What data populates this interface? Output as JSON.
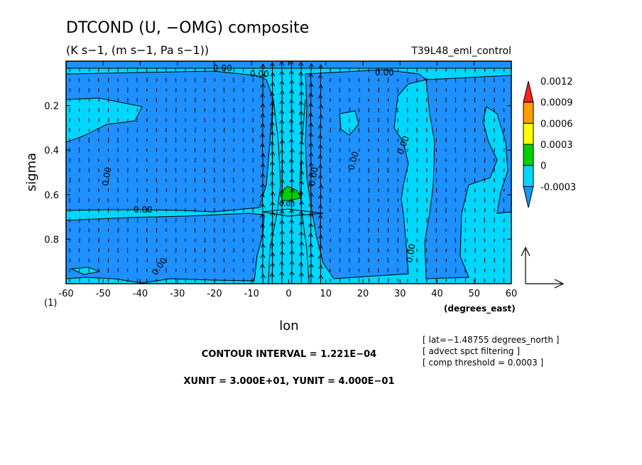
{
  "chart_data": {
    "type": "heatmap",
    "title": "DTCOND (U, −OMG) composite",
    "subtitle": "(K s−1, (m s−1, Pa s−1))",
    "run_label": "T39L48_eml_control",
    "xlabel": "lon",
    "xunits": "(degrees_east)",
    "ylabel": "sigma",
    "x_ticks": [
      -60,
      -50,
      -40,
      -30,
      -20,
      -10,
      0,
      10,
      20,
      30,
      40,
      50,
      60
    ],
    "x_tick_labels": [
      "-60",
      "-50",
      "-40",
      "-30",
      "-20",
      "-10",
      "0",
      "10",
      "20",
      "30",
      "40",
      "50",
      "60"
    ],
    "y_ticks": [
      0.2,
      0.4,
      0.6,
      0.8
    ],
    "y_tick_labels": [
      "0.2",
      "0.4",
      "0.6",
      "0.8"
    ],
    "xlim": [
      -60,
      60
    ],
    "ylim": [
      1.0,
      0.0
    ],
    "page_marker": "(1)",
    "colorbar": {
      "levels": [
        -0.0003,
        0,
        0.0003,
        0.0006,
        0.0009,
        0.0012
      ],
      "labels": [
        "-0.0003",
        "0",
        "0.0003",
        "0.0006",
        "0.0009",
        "0.0012"
      ],
      "colors": [
        "#1e90ff",
        "#00d7ff",
        "#00d000",
        "#ffff00",
        "#ffa000",
        "#ff2020"
      ]
    },
    "contour_labels": [
      "0.00",
      "0.00",
      "0.00",
      "0.00",
      "0.00",
      "0.00",
      "0.00",
      "0.00",
      "0.00",
      "0.00",
      "0.00"
    ],
    "regions": [
      {
        "value": "0 to 0.0003",
        "color": "#00d7ff",
        "x_range": [
          -60,
          60
        ],
        "y_range": [
          0.0,
          1.0
        ]
      },
      {
        "value": "-0.0003 to 0",
        "color": "#1e90ff",
        "x_range": [
          -60,
          60
        ],
        "y_range": [
          0.0,
          0.66
        ]
      },
      {
        "value": "0.0003 to 0.0006",
        "color": "#00d000",
        "x_range": [
          -3,
          3
        ],
        "y_range": [
          0.6,
          0.65
        ]
      }
    ],
    "vectors": {
      "description": "wind vectors (U, -OMG)",
      "xunit": "3.000E+01",
      "yunit": "4.000E-01"
    },
    "info_lines": [
      "[ lat=−1.48755 degrees_north ]",
      "[ advect spct filtering ]",
      "[ comp threshold = 0.0003 ]"
    ],
    "contour_interval_text": "CONTOUR INTERVAL = 1.221E−04",
    "units_text": "XUNIT = 3.000E+01, YUNIT = 4.000E−01"
  }
}
